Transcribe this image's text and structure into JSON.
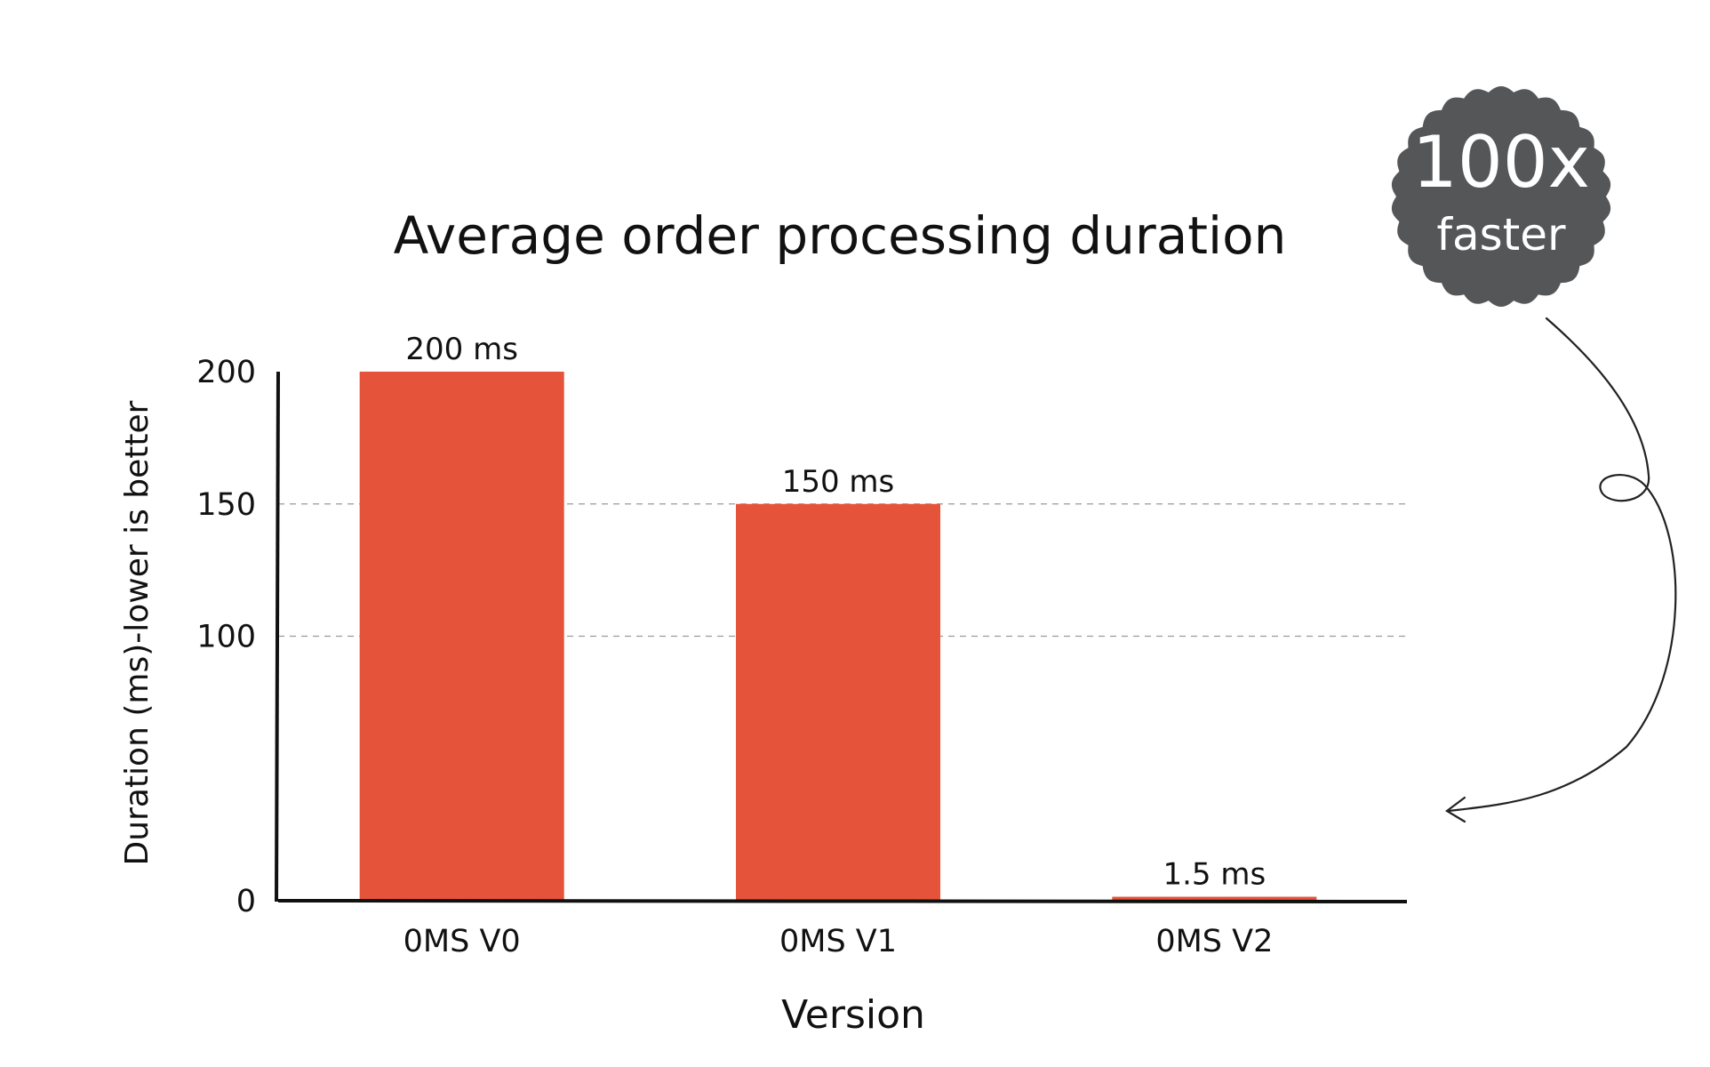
{
  "chart_data": {
    "type": "bar",
    "title": "Average order processing duration",
    "xlabel": "Version",
    "ylabel": "Duration (ms)-lower is better",
    "categories": [
      "0MS V0",
      "0MS V1",
      "0MS V2"
    ],
    "values": [
      200,
      150,
      1.5
    ],
    "value_labels": [
      "200 ms",
      "150 ms",
      "1.5 ms"
    ],
    "ylim": [
      0,
      200
    ],
    "yticks": [
      0,
      100,
      150,
      200
    ],
    "grid": "horizontal dashed at 100 and 150",
    "bar_color": "#e5533a"
  },
  "badge": {
    "line1": "100x",
    "line2": "faster",
    "color": "#555658"
  }
}
